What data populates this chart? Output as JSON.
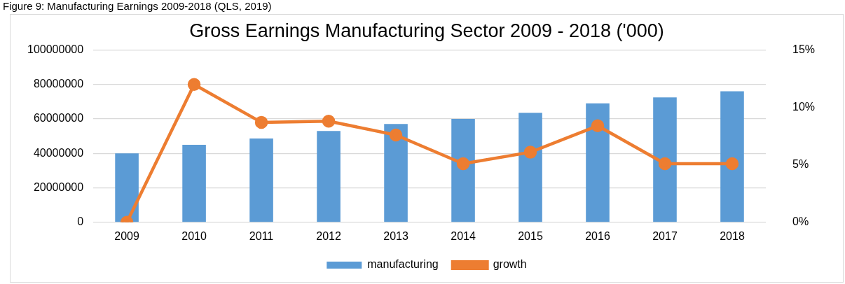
{
  "chart_data": {
    "type": "bar",
    "title": "Gross Earnings Manufacturing Sector 2009 - 2018 ('000)",
    "annotations": [
      "Figure 9: Manufacturing Earnings 2009-2018 (QLS, 2019)"
    ],
    "categories": [
      "2009",
      "2010",
      "2011",
      "2012",
      "2013",
      "2014",
      "2015",
      "2016",
      "2017",
      "2018"
    ],
    "series": [
      {
        "name": "manufacturing",
        "color": "#5b9bd5",
        "values": [
          40000000,
          45000000,
          48600000,
          53000000,
          57000000,
          60000000,
          63500000,
          69000000,
          72500000,
          76000000
        ]
      },
      {
        "name": "growth",
        "type": "line",
        "axis": "y2",
        "color": "#ed7d31",
        "values": [
          0,
          12,
          8.7,
          8.8,
          7.6,
          5.1,
          6.1,
          8.4,
          5.1,
          5.1
        ]
      }
    ],
    "ylim": [
      0,
      100000000
    ],
    "yticks": [
      0,
      20000000,
      40000000,
      60000000,
      80000000,
      100000000
    ],
    "y2lim": [
      0,
      15
    ],
    "y2ticks": [
      {
        "value": 0,
        "label": "0%"
      },
      {
        "value": 5,
        "label": "5%"
      },
      {
        "value": 10,
        "label": "10%"
      },
      {
        "value": 15,
        "label": "15%"
      }
    ],
    "grid": "y",
    "legend": "bottom",
    "marker": "circle",
    "line_style": "solid"
  }
}
